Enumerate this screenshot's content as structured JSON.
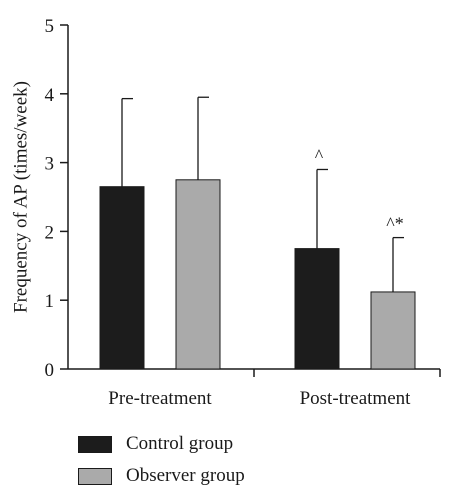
{
  "chart_data": {
    "type": "bar",
    "title": "",
    "xlabel": "",
    "ylabel": "Frequency of AP (times/week)",
    "ylim": [
      0,
      5
    ],
    "yticks": [
      0,
      1,
      2,
      3,
      4,
      5
    ],
    "categories": [
      "Pre-treatment",
      "Post-treatment"
    ],
    "grid": false,
    "legend_position": "bottom-left",
    "series": [
      {
        "name": "Control group",
        "color": "#1c1c1c",
        "values": [
          2.65,
          1.75
        ],
        "error": [
          1.28,
          1.15
        ],
        "annotations": [
          "",
          "^"
        ]
      },
      {
        "name": "Observer group",
        "color": "#aaaaaa",
        "values": [
          2.75,
          1.12
        ],
        "error": [
          1.2,
          0.79
        ],
        "annotations": [
          "",
          "^*"
        ]
      }
    ]
  }
}
